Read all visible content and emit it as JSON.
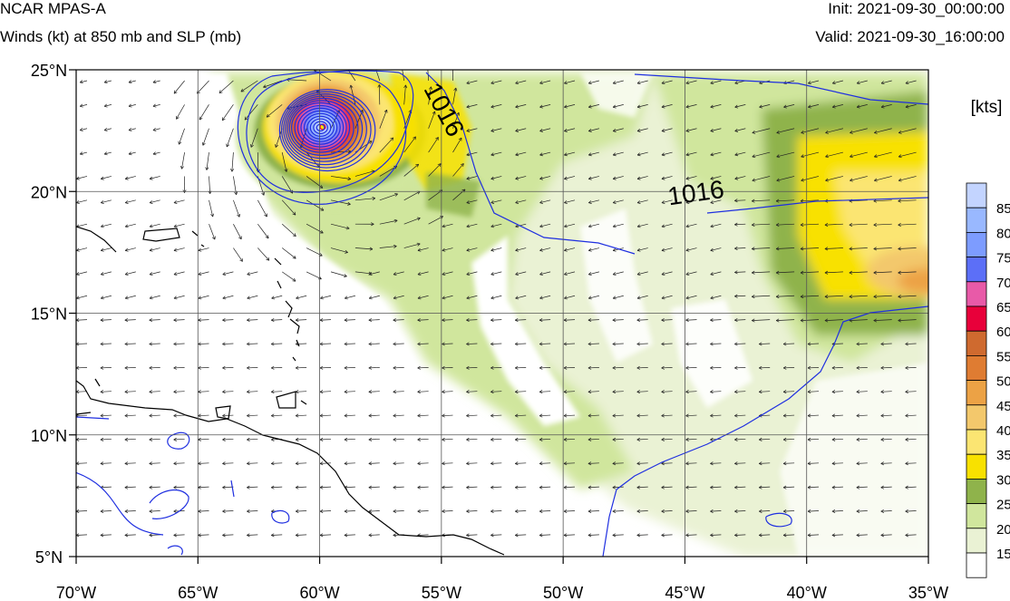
{
  "header": {
    "model": "NCAR MPAS-A",
    "field": "Winds (kt) at 850 mb and SLP (mb)",
    "init": "Init: 2021-09-30_00:00:00",
    "valid": "Valid: 2021-09-30_16:00:00"
  },
  "map": {
    "lon_range": [
      -70,
      -35
    ],
    "lat_range": [
      5,
      25
    ],
    "lat_ticks": [
      {
        "value": 25,
        "label": "25°N"
      },
      {
        "value": 20,
        "label": "20°N"
      },
      {
        "value": 15,
        "label": "15°N"
      },
      {
        "value": 10,
        "label": "10°N"
      },
      {
        "value": 5,
        "label": "5°N"
      }
    ],
    "lon_ticks": [
      {
        "value": -70,
        "label": "70°W"
      },
      {
        "value": -65,
        "label": "65°W"
      },
      {
        "value": -60,
        "label": "60°W"
      },
      {
        "value": -55,
        "label": "55°W"
      },
      {
        "value": -50,
        "label": "50°W"
      },
      {
        "value": -45,
        "label": "45°W"
      },
      {
        "value": -40,
        "label": "40°W"
      },
      {
        "value": -35,
        "label": "35°W"
      }
    ],
    "grid": true,
    "isobar_labels": [
      {
        "text": "1016",
        "lon": -55.2,
        "lat": 23.2
      },
      {
        "text": "1016",
        "lon": -44.5,
        "lat": 19.6
      }
    ],
    "cyclone_center": {
      "lon": -60.0,
      "lat": 22.7
    }
  },
  "colorbar": {
    "title": "[kts]",
    "labels": [
      "85",
      "80",
      "75",
      "70",
      "65",
      "60",
      "55",
      "50",
      "45",
      "40",
      "35",
      "30",
      "25",
      "20",
      "15"
    ],
    "colors": [
      "#c3d4ff",
      "#99b8ff",
      "#7d9cff",
      "#5c6ff7",
      "#e85aa8",
      "#e8003a",
      "#cf6a2f",
      "#df7c32",
      "#eca245",
      "#f3c86c",
      "#fbe572",
      "#f8e100",
      "#8fb34b",
      "#d0e69d",
      "#eaf2d4",
      "#ffffff"
    ]
  },
  "colors": {
    "isobar": "#1f2fe0",
    "coast": "#000000",
    "grid": "#666666"
  }
}
